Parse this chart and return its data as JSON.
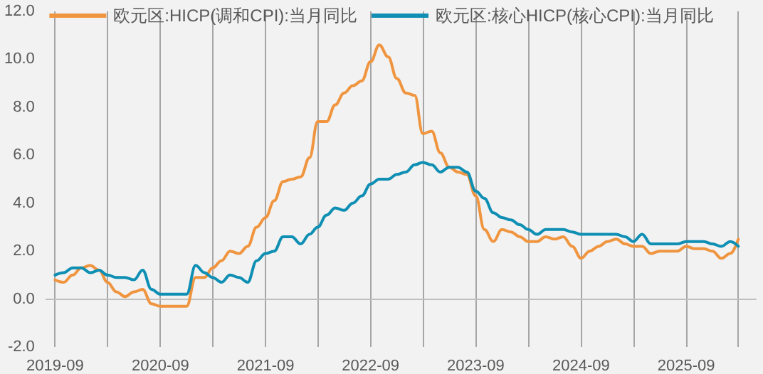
{
  "chart_data": {
    "type": "line",
    "x": [
      "2019-09",
      "2019-10",
      "2019-11",
      "2019-12",
      "2020-01",
      "2020-02",
      "2020-03",
      "2020-04",
      "2020-05",
      "2020-06",
      "2020-07",
      "2020-08",
      "2020-09",
      "2020-10",
      "2020-11",
      "2020-12",
      "2021-01",
      "2021-02",
      "2021-03",
      "2021-04",
      "2021-05",
      "2021-06",
      "2021-07",
      "2021-08",
      "2021-09",
      "2021-10",
      "2021-11",
      "2021-12",
      "2022-01",
      "2022-02",
      "2022-03",
      "2022-04",
      "2022-05",
      "2022-06",
      "2022-07",
      "2022-08",
      "2022-09",
      "2022-10",
      "2022-11",
      "2022-12",
      "2023-01",
      "2023-02",
      "2023-03",
      "2023-04",
      "2023-05",
      "2023-06",
      "2023-07",
      "2023-08",
      "2023-09",
      "2023-10",
      "2023-11",
      "2023-12",
      "2024-01",
      "2024-02",
      "2024-03",
      "2024-04",
      "2024-05",
      "2024-06",
      "2024-07",
      "2024-08",
      "2024-09",
      "2024-10",
      "2024-11",
      "2024-12",
      "2025-01",
      "2025-02",
      "2025-03",
      "2025-04",
      "2025-05",
      "2025-06",
      "2025-07",
      "2025-08",
      "2025-09",
      "2025-10",
      "2025-11",
      "2025-12",
      "2026-01",
      "2026-02",
      "2026-03"
    ],
    "series": [
      {
        "name": "欧元区:HICP(调和CPI):当月同比",
        "color": "#f0953f",
        "values": [
          0.8,
          0.7,
          1.0,
          1.3,
          1.4,
          1.2,
          0.7,
          0.3,
          0.1,
          0.3,
          0.4,
          -0.2,
          -0.3,
          -0.3,
          -0.3,
          -0.3,
          0.9,
          0.9,
          1.3,
          1.6,
          2.0,
          1.9,
          2.2,
          3.0,
          3.4,
          4.1,
          4.9,
          5.0,
          5.1,
          5.9,
          7.4,
          7.4,
          8.1,
          8.6,
          8.9,
          9.1,
          9.9,
          10.6,
          10.1,
          9.2,
          8.6,
          8.5,
          6.9,
          7.0,
          6.1,
          5.5,
          5.3,
          5.2,
          4.3,
          2.9,
          2.4,
          2.9,
          2.8,
          2.6,
          2.4,
          2.4,
          2.6,
          2.5,
          2.6,
          2.2,
          1.7,
          2.0,
          2.2,
          2.4,
          2.5,
          2.3,
          2.2,
          2.2,
          1.9,
          2.0,
          2.0,
          2.0,
          2.2,
          2.1,
          2.1,
          2.0,
          1.7,
          1.9,
          2.5
        ]
      },
      {
        "name": "欧元区:核心HICP(核心CPI):当月同比",
        "color": "#0f8fb3",
        "values": [
          1.0,
          1.1,
          1.3,
          1.3,
          1.1,
          1.2,
          1.0,
          0.9,
          0.9,
          0.8,
          1.2,
          0.4,
          0.2,
          0.2,
          0.2,
          0.2,
          1.4,
          1.1,
          0.9,
          0.7,
          1.0,
          0.9,
          0.7,
          1.6,
          1.9,
          2.0,
          2.6,
          2.6,
          2.3,
          2.7,
          3.0,
          3.5,
          3.8,
          3.7,
          4.0,
          4.3,
          4.8,
          5.0,
          5.0,
          5.2,
          5.3,
          5.6,
          5.7,
          5.6,
          5.3,
          5.5,
          5.5,
          5.3,
          4.5,
          4.2,
          3.6,
          3.4,
          3.3,
          3.1,
          2.9,
          2.7,
          2.9,
          2.9,
          2.9,
          2.8,
          2.7,
          2.7,
          2.7,
          2.7,
          2.7,
          2.6,
          2.4,
          2.7,
          2.3,
          2.3,
          2.3,
          2.3,
          2.4,
          2.4,
          2.4,
          2.3,
          2.2,
          2.4,
          2.2
        ]
      }
    ],
    "xlim": [
      "2019-08",
      "2026-05"
    ],
    "xticks": [
      "2019-09",
      {
        "value": "2020-03",
        "label": null
      },
      "2020-09",
      {
        "value": "2021-03",
        "label": null
      },
      "2021-09",
      {
        "value": "2022-03",
        "label": null
      },
      "2022-09",
      {
        "value": "2023-03",
        "label": null
      },
      "2023-09",
      {
        "value": "2024-03",
        "label": null
      },
      "2024-09",
      {
        "value": "2025-03",
        "label": null
      },
      "2025-09",
      {
        "value": "2026-03",
        "label": null
      }
    ],
    "ylim": [
      -2,
      12
    ],
    "yticks": [
      {
        "value": -2,
        "label": "-2.0"
      },
      {
        "value": 0,
        "label": "0.0"
      },
      {
        "value": 2,
        "label": "2.0"
      },
      {
        "value": 4,
        "label": "4.0"
      },
      {
        "value": 6,
        "label": "6.0"
      },
      {
        "value": 8,
        "label": "8.0"
      },
      {
        "value": 10,
        "label": "10.0"
      },
      {
        "value": 12,
        "label": "12.0"
      }
    ],
    "grid": "x",
    "legend": "top",
    "marker": "none",
    "line_style": "solid"
  }
}
